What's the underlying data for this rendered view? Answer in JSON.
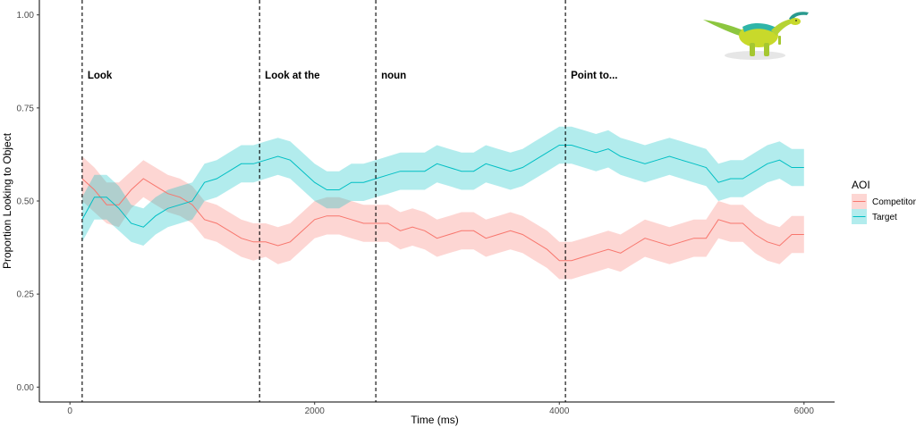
{
  "chart_data": {
    "type": "line",
    "xlabel": "Time (ms)",
    "ylabel": "Proportion Looking to Object",
    "xlim": [
      -250,
      6250
    ],
    "ylim": [
      -0.04,
      1.04
    ],
    "x_ticks": [
      0,
      2000,
      4000,
      6000
    ],
    "y_ticks": [
      0.0,
      0.25,
      0.5,
      0.75,
      1.0
    ],
    "x_tick_labels": [
      "0",
      "2000",
      "4000",
      "6000"
    ],
    "y_tick_labels": [
      "0.00",
      "0.25",
      "0.50",
      "0.75",
      "1.00"
    ],
    "grid": false,
    "legend_position": "right",
    "legend": {
      "title": "AOI"
    },
    "colors": {
      "Competitor": "#F8766D",
      "Target": "#00BFC4"
    },
    "vlines": [
      {
        "x": 100,
        "label": "Look"
      },
      {
        "x": 1550,
        "label": "Look at the"
      },
      {
        "x": 2500,
        "label": "noun"
      },
      {
        "x": 4050,
        "label": "Point to..."
      }
    ],
    "x": [
      100,
      200,
      300,
      400,
      500,
      600,
      700,
      800,
      900,
      1000,
      1100,
      1200,
      1300,
      1400,
      1500,
      1600,
      1700,
      1800,
      1900,
      2000,
      2100,
      2200,
      2300,
      2400,
      2500,
      2600,
      2700,
      2800,
      2900,
      3000,
      3100,
      3200,
      3300,
      3400,
      3500,
      3600,
      3700,
      3800,
      3900,
      4000,
      4100,
      4200,
      4300,
      4400,
      4500,
      4600,
      4700,
      4800,
      4900,
      5000,
      5100,
      5200,
      5300,
      5400,
      5500,
      5600,
      5700,
      5800,
      5900,
      6000
    ],
    "series": [
      {
        "name": "Competitor",
        "values": [
          0.56,
          0.53,
          0.49,
          0.49,
          0.53,
          0.56,
          0.54,
          0.52,
          0.51,
          0.49,
          0.45,
          0.44,
          0.42,
          0.4,
          0.39,
          0.39,
          0.38,
          0.39,
          0.42,
          0.45,
          0.46,
          0.46,
          0.45,
          0.44,
          0.44,
          0.44,
          0.42,
          0.43,
          0.42,
          0.4,
          0.41,
          0.42,
          0.42,
          0.4,
          0.41,
          0.42,
          0.41,
          0.39,
          0.37,
          0.34,
          0.34,
          0.35,
          0.36,
          0.37,
          0.36,
          0.38,
          0.4,
          0.39,
          0.38,
          0.39,
          0.4,
          0.4,
          0.45,
          0.44,
          0.44,
          0.41,
          0.39,
          0.38,
          0.41,
          0.41
        ],
        "lower": [
          0.5,
          0.47,
          0.44,
          0.43,
          0.48,
          0.51,
          0.49,
          0.47,
          0.46,
          0.44,
          0.4,
          0.39,
          0.37,
          0.35,
          0.34,
          0.35,
          0.33,
          0.34,
          0.37,
          0.4,
          0.41,
          0.41,
          0.4,
          0.39,
          0.39,
          0.39,
          0.37,
          0.38,
          0.37,
          0.35,
          0.36,
          0.37,
          0.37,
          0.35,
          0.36,
          0.37,
          0.36,
          0.34,
          0.32,
          0.29,
          0.29,
          0.3,
          0.31,
          0.32,
          0.31,
          0.33,
          0.35,
          0.34,
          0.33,
          0.34,
          0.35,
          0.35,
          0.4,
          0.39,
          0.39,
          0.36,
          0.34,
          0.33,
          0.36,
          0.36
        ],
        "upper": [
          0.62,
          0.59,
          0.55,
          0.55,
          0.58,
          0.61,
          0.59,
          0.57,
          0.56,
          0.54,
          0.5,
          0.49,
          0.47,
          0.45,
          0.44,
          0.44,
          0.43,
          0.44,
          0.47,
          0.5,
          0.51,
          0.51,
          0.5,
          0.49,
          0.49,
          0.49,
          0.47,
          0.48,
          0.47,
          0.45,
          0.46,
          0.47,
          0.47,
          0.45,
          0.46,
          0.47,
          0.46,
          0.44,
          0.42,
          0.39,
          0.39,
          0.4,
          0.41,
          0.42,
          0.41,
          0.43,
          0.45,
          0.44,
          0.43,
          0.44,
          0.45,
          0.45,
          0.5,
          0.49,
          0.49,
          0.46,
          0.44,
          0.43,
          0.46,
          0.46
        ]
      },
      {
        "name": "Target",
        "values": [
          0.45,
          0.51,
          0.51,
          0.48,
          0.44,
          0.43,
          0.46,
          0.48,
          0.49,
          0.5,
          0.55,
          0.56,
          0.58,
          0.6,
          0.6,
          0.61,
          0.62,
          0.61,
          0.58,
          0.55,
          0.53,
          0.53,
          0.55,
          0.55,
          0.56,
          0.57,
          0.58,
          0.58,
          0.58,
          0.6,
          0.59,
          0.58,
          0.58,
          0.6,
          0.59,
          0.58,
          0.59,
          0.61,
          0.63,
          0.65,
          0.65,
          0.64,
          0.63,
          0.64,
          0.62,
          0.61,
          0.6,
          0.61,
          0.62,
          0.61,
          0.6,
          0.59,
          0.55,
          0.56,
          0.56,
          0.58,
          0.6,
          0.61,
          0.59,
          0.59
        ],
        "lower": [
          0.39,
          0.45,
          0.45,
          0.42,
          0.39,
          0.38,
          0.41,
          0.43,
          0.44,
          0.45,
          0.5,
          0.51,
          0.53,
          0.55,
          0.55,
          0.56,
          0.57,
          0.56,
          0.53,
          0.5,
          0.48,
          0.48,
          0.5,
          0.5,
          0.51,
          0.52,
          0.53,
          0.53,
          0.53,
          0.55,
          0.54,
          0.53,
          0.53,
          0.55,
          0.54,
          0.53,
          0.54,
          0.56,
          0.58,
          0.6,
          0.6,
          0.59,
          0.58,
          0.59,
          0.57,
          0.56,
          0.55,
          0.56,
          0.57,
          0.56,
          0.55,
          0.54,
          0.5,
          0.51,
          0.51,
          0.53,
          0.55,
          0.56,
          0.54,
          0.54
        ],
        "upper": [
          0.51,
          0.57,
          0.57,
          0.54,
          0.49,
          0.48,
          0.51,
          0.53,
          0.54,
          0.55,
          0.6,
          0.61,
          0.63,
          0.65,
          0.65,
          0.66,
          0.67,
          0.66,
          0.63,
          0.6,
          0.58,
          0.58,
          0.6,
          0.6,
          0.61,
          0.62,
          0.63,
          0.63,
          0.63,
          0.65,
          0.64,
          0.63,
          0.63,
          0.65,
          0.64,
          0.63,
          0.64,
          0.66,
          0.68,
          0.7,
          0.7,
          0.69,
          0.68,
          0.69,
          0.67,
          0.66,
          0.65,
          0.66,
          0.67,
          0.66,
          0.65,
          0.64,
          0.6,
          0.61,
          0.61,
          0.63,
          0.65,
          0.66,
          0.64,
          0.64
        ]
      }
    ],
    "image": "dinosaur-illustration"
  }
}
